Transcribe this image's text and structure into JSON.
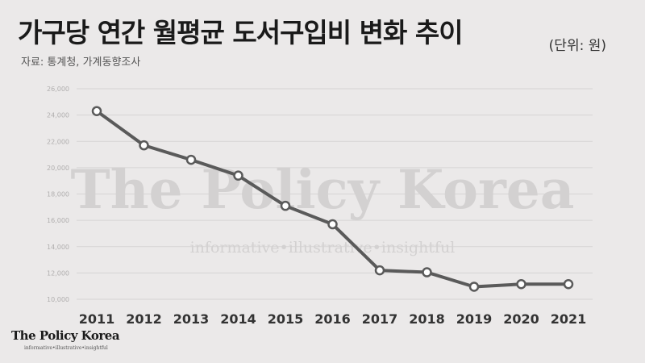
{
  "header": {
    "title": "가구당 연간 월평균 도서구입비 변화 추이",
    "unit": "(단위: 원)",
    "source": "자료: 통계청, 가계동향조사"
  },
  "watermark": {
    "main": "The Policy Korea",
    "tagline": "informative•illustrative•insightful"
  },
  "brand": {
    "name": "The Policy Korea",
    "tagline": "informative•illustrative•insightful"
  },
  "colors": {
    "background": "#ebe9e9",
    "line": "#5a5a5a",
    "marker_fill": "#ffffff",
    "grid": "#d6d4d4",
    "watermark": "#cfcdcd"
  },
  "chart_data": {
    "type": "line",
    "x": [
      "2011",
      "2012",
      "2013",
      "2014",
      "2015",
      "2016",
      "2017",
      "2018",
      "2019",
      "2020",
      "2021"
    ],
    "series": [
      {
        "values": [
          24300,
          21700,
          20600,
          19400,
          17100,
          15700,
          12200,
          12050,
          10950,
          11150,
          11150
        ]
      }
    ],
    "ylim": [
      10000,
      26000
    ],
    "yticks": [
      "10,000",
      "12,000",
      "14,000",
      "16,000",
      "18,000",
      "20,000",
      "22,000",
      "24,000",
      "26,000"
    ],
    "grid": true,
    "legend": "none",
    "xlabel": "",
    "ylabel": ""
  }
}
